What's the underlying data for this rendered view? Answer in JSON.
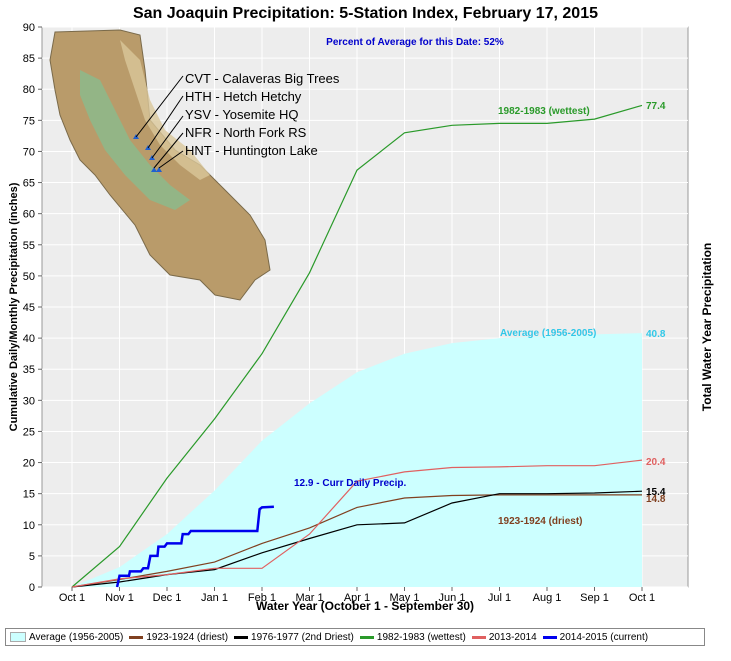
{
  "chart_data": {
    "type": "line",
    "title": "San Joaquin Precipitation: 5-Station Index, February 17, 2015",
    "xlabel": "Water Year (October 1 - September 30)",
    "ylabel": "Cumulative Daily/Monthly Precipitation (inches)",
    "ylabel_right": "Total Water Year Precipitation",
    "ylim": [
      0,
      90
    ],
    "yticks": [
      0,
      5,
      10,
      15,
      20,
      25,
      30,
      35,
      40,
      45,
      50,
      55,
      60,
      65,
      70,
      75,
      80,
      85,
      90
    ],
    "categories": [
      "Oct 1",
      "Nov 1",
      "Dec 1",
      "Jan 1",
      "Feb 1",
      "Mar 1",
      "Apr 1",
      "May 1",
      "Jun 1",
      "Jul 1",
      "Aug 1",
      "Sep 1",
      "Oct 1"
    ],
    "grid": true,
    "series": [
      {
        "name": "Average (1956-2005)",
        "kind": "area",
        "color": "#ccffff",
        "values": [
          0,
          3.2,
          8.5,
          15.5,
          23.5,
          29.5,
          34.5,
          37.5,
          39.2,
          40,
          40.3,
          40.6,
          40.8
        ]
      },
      {
        "name": "1923-1924 (driest)",
        "color": "#804020",
        "values": [
          0,
          1.2,
          2.5,
          4,
          7,
          9.5,
          12.8,
          14.3,
          14.7,
          14.8,
          14.8,
          14.8,
          14.8
        ]
      },
      {
        "name": "1976-1977 (2nd Driest)",
        "color": "#000000",
        "values": [
          0,
          0.8,
          2,
          2.8,
          5.5,
          7.8,
          10,
          10.3,
          13.5,
          15,
          15,
          15.1,
          15.4
        ]
      },
      {
        "name": "1982-1983 (wettest)",
        "color": "#2a9a2a",
        "values": [
          0,
          6.5,
          17.5,
          27,
          37.5,
          50.5,
          67,
          73,
          74.2,
          74.5,
          74.5,
          75.2,
          77.4
        ]
      },
      {
        "name": "2013-2014",
        "color": "#e06060",
        "values": [
          0,
          1.3,
          2,
          3,
          3,
          8.5,
          17,
          18.5,
          19.2,
          19.3,
          19.5,
          19.5,
          20.4
        ]
      },
      {
        "name": "2014-2015 (current)",
        "color": "#0000ee",
        "width": 2.5,
        "step_points": [
          [
            0.95,
            0
          ],
          [
            1.0,
            1.8
          ],
          [
            1.2,
            1.8
          ],
          [
            1.22,
            2.5
          ],
          [
            1.45,
            2.5
          ],
          [
            1.5,
            3
          ],
          [
            1.6,
            3
          ],
          [
            1.65,
            5
          ],
          [
            1.8,
            5
          ],
          [
            1.82,
            6.5
          ],
          [
            1.95,
            6.5
          ],
          [
            2.0,
            7
          ],
          [
            2.3,
            7
          ],
          [
            2.33,
            8.5
          ],
          [
            2.45,
            8.5
          ],
          [
            2.5,
            9
          ],
          [
            3.9,
            9
          ],
          [
            3.95,
            12.5
          ],
          [
            4.0,
            12.8
          ],
          [
            4.25,
            12.9
          ]
        ]
      }
    ],
    "annotations": {
      "percent": "Percent of Average for this Date: 52%",
      "wettest_label": "1982-1983 (wettest)",
      "wettest_total": "77.4",
      "average_label": "Average (1956-2005)",
      "average_total": "40.8",
      "y2014_total": "20.4",
      "y1977_total": "15.4",
      "y1924_total": "14.8",
      "driest_label": "1923-1924 (driest)",
      "current_label": "12.9 -  Curr Daily Precip."
    },
    "stations": [
      "CVT - Calaveras Big Trees",
      "HTH - Hetch Hetchy",
      "YSV - Yosemite HQ",
      "NFR - North Fork RS",
      "HNT - Huntington Lake"
    ]
  },
  "legend": [
    {
      "label": "Average (1956-2005)",
      "color": "#ccffff",
      "kind": "area"
    },
    {
      "label": "1923-1924 (driest)",
      "color": "#804020",
      "kind": "line"
    },
    {
      "label": "1976-1977 (2nd Driest)",
      "color": "#000000",
      "kind": "line"
    },
    {
      "label": "1982-1983 (wettest)",
      "color": "#2a9a2a",
      "kind": "line"
    },
    {
      "label": "2013-2014",
      "color": "#e06060",
      "kind": "line"
    },
    {
      "label": "2014-2015 (current)",
      "color": "#0000ee",
      "kind": "line"
    }
  ]
}
